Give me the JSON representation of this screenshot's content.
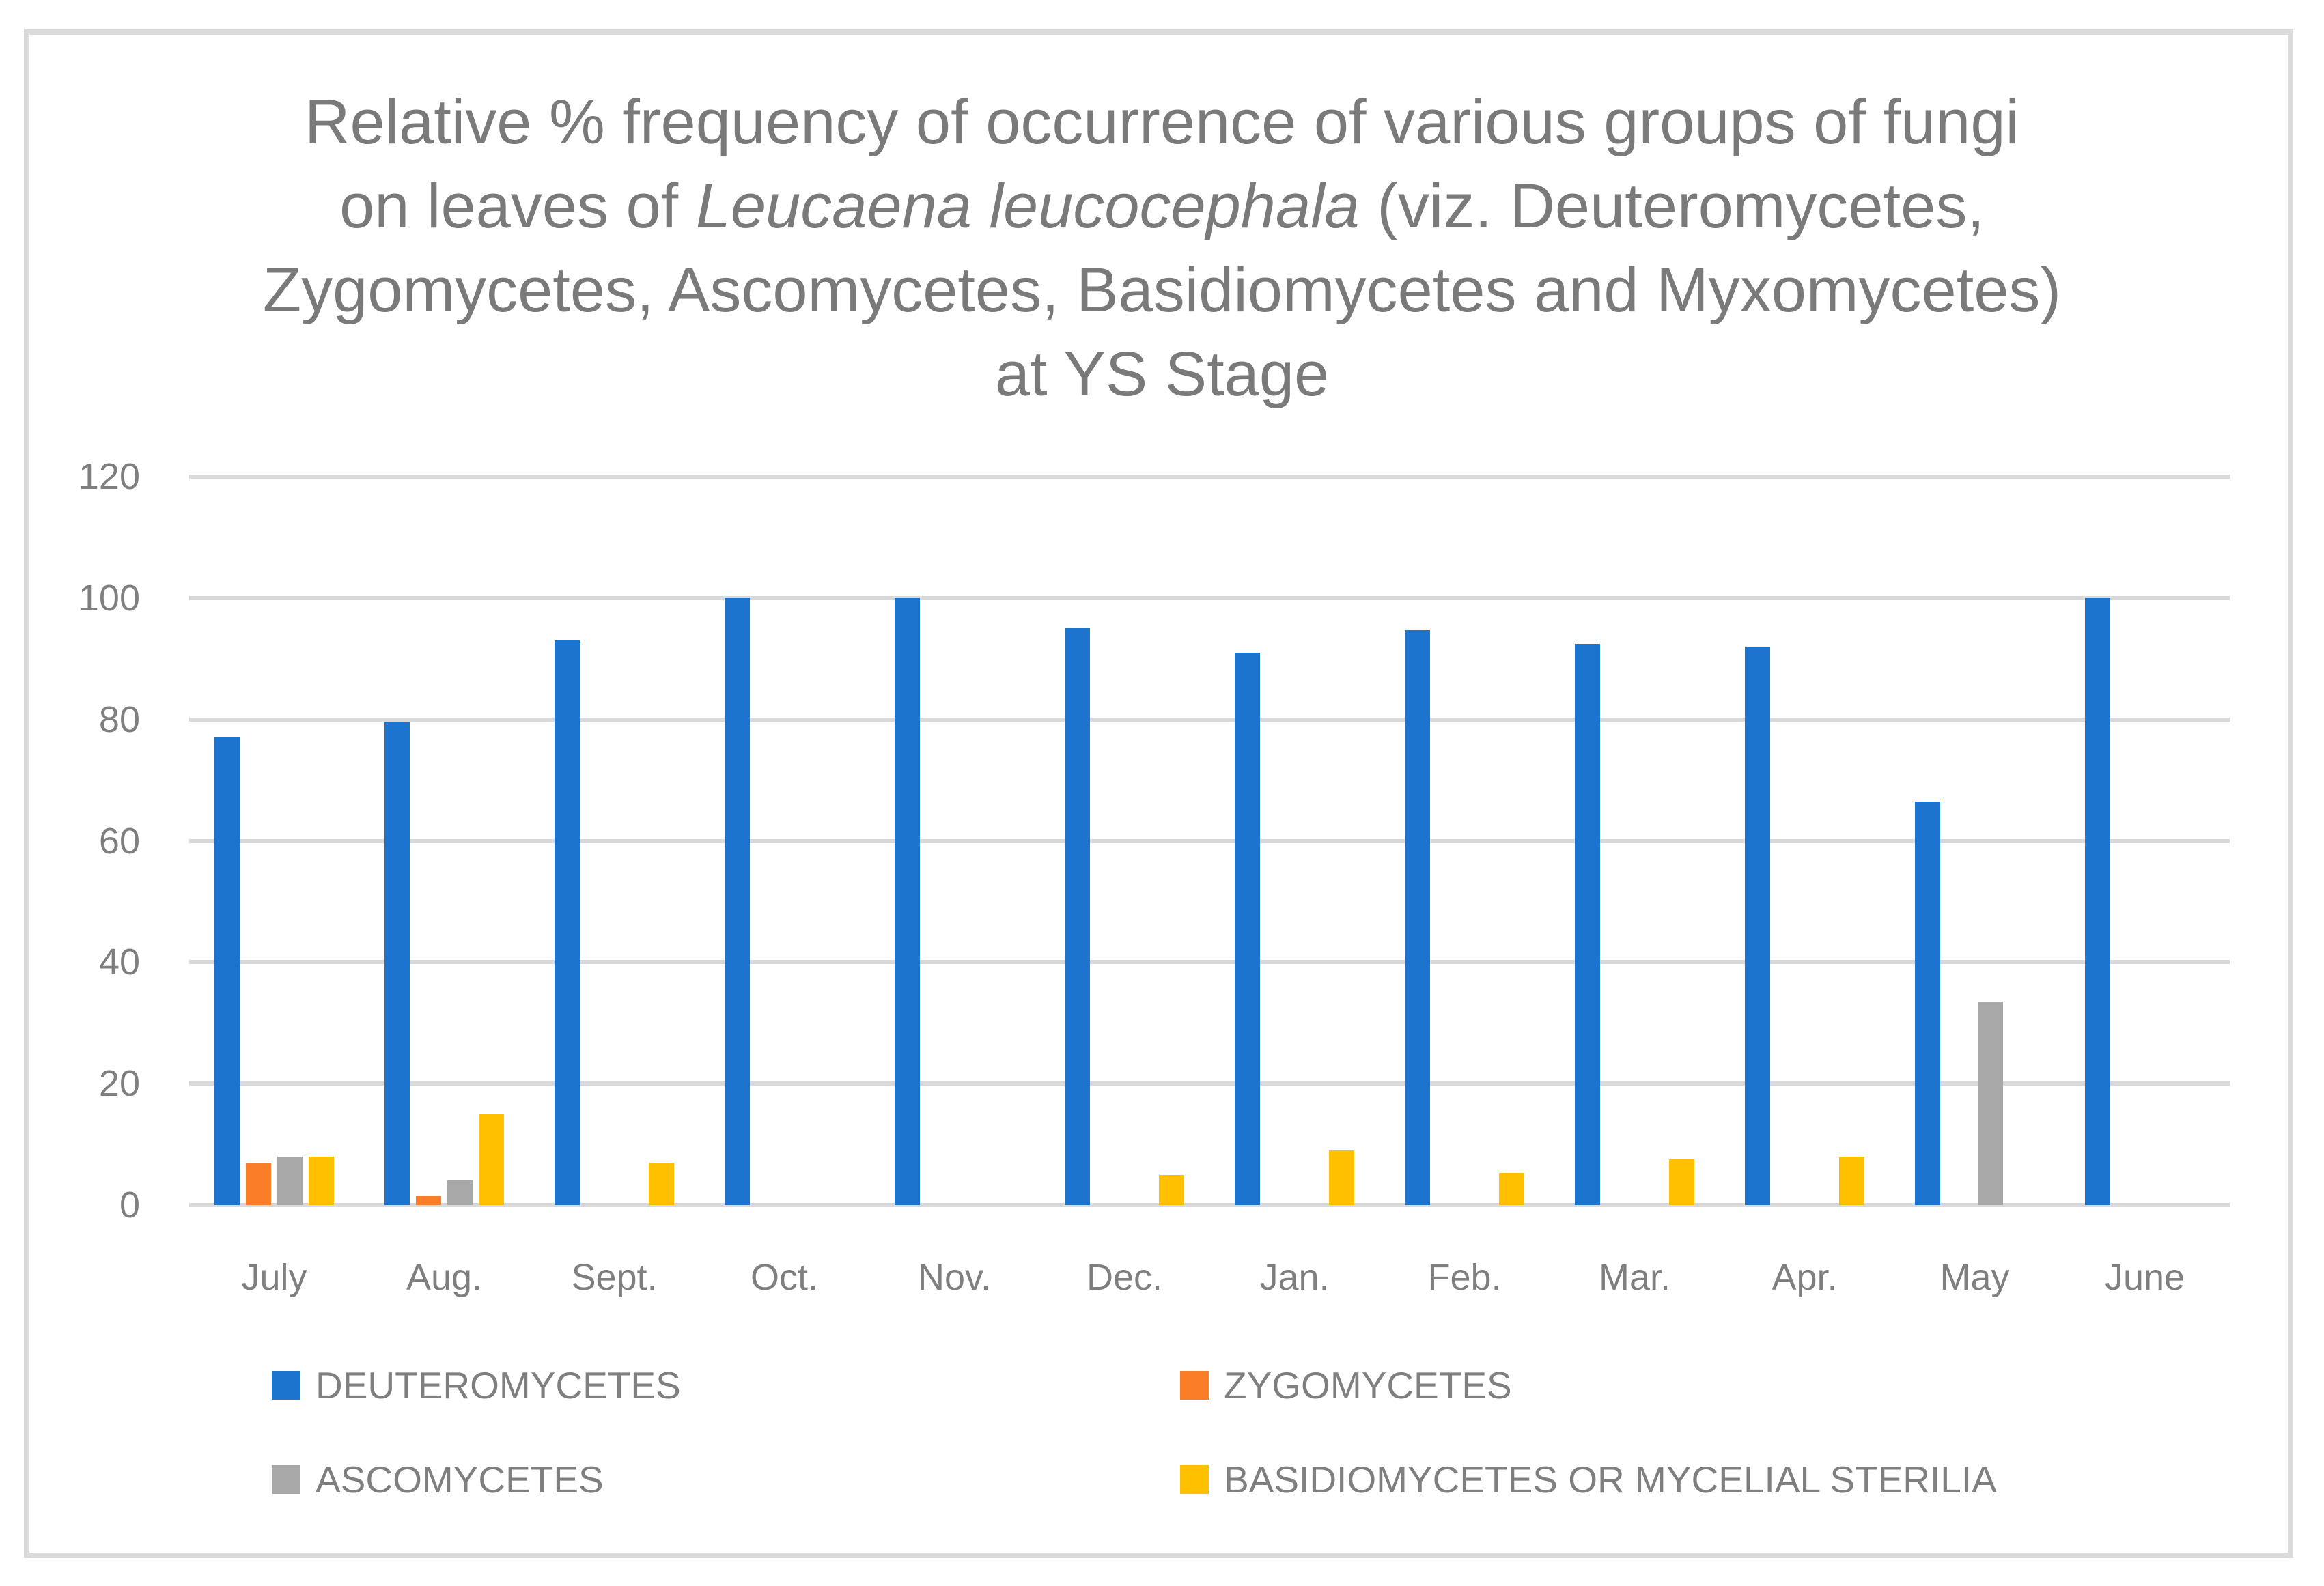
{
  "title": {
    "line1": "Relative % frequency of occurrence of various groups of fungi",
    "line2_prefix": "on leaves of ",
    "line2_italic": "Leucaena leucocephala",
    "line2_suffix": " (viz. Deuteromycetes,",
    "line3": "Zygomycetes, Ascomycetes, Basidiomycetes and Myxomycetes)",
    "line4": "at YS Stage"
  },
  "colors": {
    "grid": "#D9D9D9",
    "axis_text": "#7F7F7F",
    "title_text": "#7A7A7A",
    "border": "#DBDBDB"
  },
  "chart_data": {
    "type": "bar",
    "categories": [
      "July",
      "Aug.",
      "Sept.",
      "Oct.",
      "Nov.",
      "Dec.",
      "Jan.",
      "Feb.",
      "Mar.",
      "Apr.",
      "May",
      "June"
    ],
    "series": [
      {
        "name": "DEUTEROMYCETES",
        "color": "#1C74CE",
        "values": [
          77,
          79.5,
          93,
          100,
          100,
          95,
          91,
          94.7,
          92.5,
          92,
          66.5,
          100
        ]
      },
      {
        "name": "ZYGOMYCETES",
        "color": "#FC7D28",
        "values": [
          7,
          1.5,
          0,
          0,
          0,
          0,
          0,
          0,
          0,
          0,
          0,
          0
        ]
      },
      {
        "name": "ASCOMYCETES",
        "color": "#A8A8A8",
        "values": [
          8,
          4,
          0,
          0,
          0,
          0,
          0,
          0,
          0,
          0,
          33.5,
          0
        ]
      },
      {
        "name": "BASIDIOMYCETES OR MYCELIAL STERILIA",
        "color": "#FFC000",
        "values": [
          8,
          15,
          7,
          0,
          0,
          5,
          9,
          5.3,
          7.5,
          8,
          0,
          0
        ]
      }
    ],
    "title": "Relative % frequency of occurrence of various groups of fungi on leaves of Leucaena leucocephala (viz. Deuteromycetes, Zygomycetes, Ascomycetes, Basidiomycetes and Myxomycetes) at YS Stage",
    "xlabel": "",
    "ylabel": "",
    "ylim": [
      0,
      120
    ],
    "ytick_interval": 20,
    "yticks": [
      "0",
      "20",
      "40",
      "60",
      "80",
      "100",
      "120"
    ],
    "grid": true,
    "legend_position": "bottom"
  }
}
